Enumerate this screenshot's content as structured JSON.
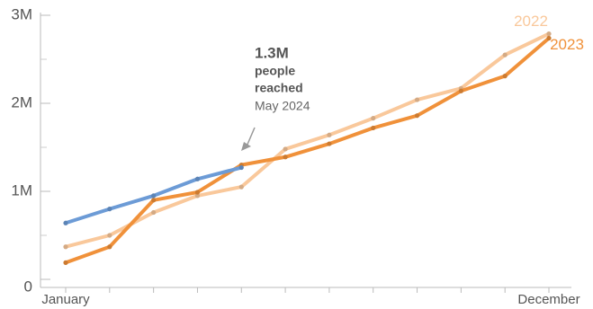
{
  "chart_data": {
    "type": "line",
    "categories": [
      "January",
      null,
      null,
      null,
      null,
      null,
      null,
      null,
      null,
      null,
      null,
      "December"
    ],
    "series": [
      {
        "name": "2022",
        "color": "#f9c89b",
        "values": [
          370000,
          500000,
          760000,
          950000,
          1050000,
          1480000,
          1640000,
          1830000,
          2040000,
          2170000,
          2550000,
          2790000
        ]
      },
      {
        "name": "2023",
        "color": "#f0913a",
        "values": [
          190000,
          370000,
          900000,
          990000,
          1300000,
          1390000,
          1540000,
          1720000,
          1860000,
          2140000,
          2310000,
          2740000
        ]
      },
      {
        "color": "#6c9bd6",
        "values": [
          640000,
          800000,
          950000,
          1140000,
          1270000,
          null,
          null,
          null,
          null,
          null,
          null,
          null
        ]
      }
    ],
    "ylim": [
      0,
      3000000
    ],
    "yticks": [
      0,
      {
        "value": 1000000,
        "label": "1M"
      },
      {
        "value": 2000000,
        "label": "2M"
      },
      {
        "value": 3000000,
        "label": "3M"
      }
    ],
    "annotation": {
      "lines": [
        "1.3M",
        "people",
        "reached",
        "May 2024"
      ]
    }
  }
}
